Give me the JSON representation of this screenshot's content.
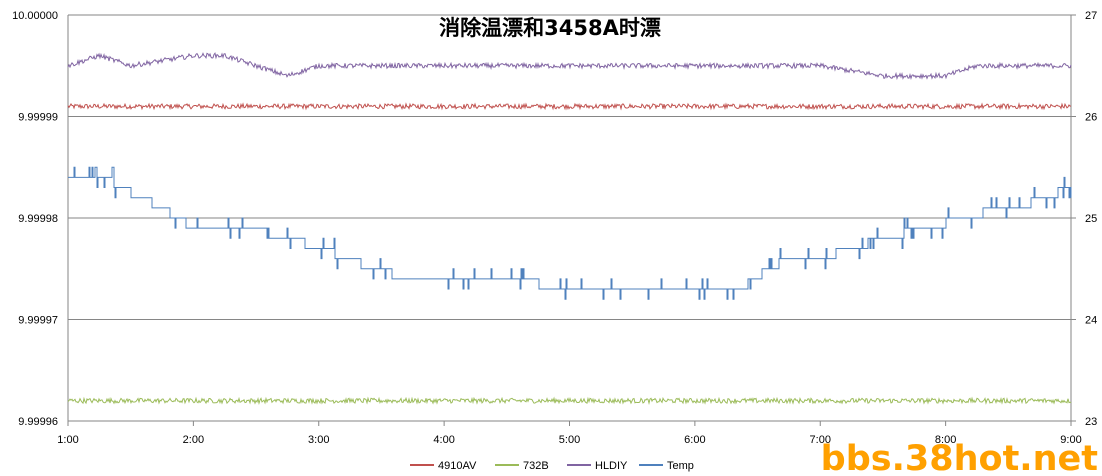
{
  "chart_data": {
    "type": "line",
    "title": "消除温漂和3458A时漂",
    "x": [
      "1:00",
      "2:00",
      "3:00",
      "4:00",
      "5:00",
      "6:00",
      "7:00",
      "8:00",
      "9:00"
    ],
    "xlim": [
      "1:00",
      "9:00"
    ],
    "y_left": {
      "ticks": [
        "10.00000",
        "9.99999",
        "9.99998",
        "9.99997",
        "9.99996"
      ],
      "ylim": [
        9.99996,
        10.0
      ]
    },
    "y_right": {
      "ticks": [
        "27",
        "26",
        "25",
        "24",
        "23"
      ],
      "ylim": [
        23,
        27
      ]
    },
    "grid": true,
    "legend_position": "bottom",
    "series": [
      {
        "name": "4910AV",
        "axis": "left",
        "color": "#c0504d",
        "x": [
          "1:00",
          "1:30",
          "2:00",
          "2:30",
          "3:00",
          "3:30",
          "4:00",
          "4:30",
          "5:00",
          "5:30",
          "6:00",
          "6:30",
          "7:00",
          "7:30",
          "8:00",
          "8:30",
          "9:00"
        ],
        "values": [
          9.999991,
          9.999991,
          9.999991,
          9.999991,
          9.999991,
          9.999991,
          9.999991,
          9.999991,
          9.999991,
          9.999991,
          9.999991,
          9.999991,
          9.999991,
          9.999991,
          9.999991,
          9.999991,
          9.999991
        ]
      },
      {
        "name": "732B",
        "axis": "left",
        "color": "#9bbb59",
        "x": [
          "1:00",
          "1:30",
          "2:00",
          "2:30",
          "3:00",
          "3:30",
          "4:00",
          "4:30",
          "5:00",
          "5:30",
          "6:00",
          "6:30",
          "7:00",
          "7:30",
          "8:00",
          "8:30",
          "9:00"
        ],
        "values": [
          9.999962,
          9.999962,
          9.999962,
          9.999962,
          9.999962,
          9.999962,
          9.999962,
          9.999962,
          9.999962,
          9.999962,
          9.999962,
          9.999962,
          9.999962,
          9.999962,
          9.999962,
          9.999962,
          9.999962
        ]
      },
      {
        "name": "HLDIY",
        "axis": "left",
        "color": "#8064a2",
        "x": [
          "1:00",
          "1:15",
          "1:30",
          "2:00",
          "2:15",
          "2:30",
          "2:45",
          "3:00",
          "3:30",
          "4:00",
          "4:30",
          "5:00",
          "5:30",
          "6:00",
          "6:30",
          "7:00",
          "7:30",
          "7:45",
          "8:00",
          "8:15",
          "8:30",
          "9:00"
        ],
        "values": [
          9.999995,
          9.999996,
          9.999995,
          9.999996,
          9.999996,
          9.999995,
          9.999994,
          9.999995,
          9.999995,
          9.999995,
          9.999995,
          9.999995,
          9.999995,
          9.999995,
          9.999995,
          9.999995,
          9.999994,
          9.999994,
          9.999994,
          9.999995,
          9.999995,
          9.999995
        ]
      },
      {
        "name": "Temp",
        "axis": "right",
        "color": "#4f81bd",
        "x": [
          "1:00",
          "1:15",
          "1:25",
          "1:35",
          "1:45",
          "2:00",
          "2:25",
          "2:45",
          "3:00",
          "3:15",
          "3:25",
          "3:45",
          "4:00",
          "4:15",
          "4:30",
          "4:45",
          "5:00",
          "5:15",
          "5:30",
          "5:45",
          "6:00",
          "6:10",
          "6:25",
          "6:35",
          "6:45",
          "7:00",
          "7:15",
          "7:30",
          "7:40",
          "7:55",
          "8:05",
          "8:30",
          "8:40",
          "9:00"
        ],
        "values": [
          25.4,
          25.45,
          25.3,
          25.2,
          25.1,
          24.9,
          24.9,
          24.8,
          24.7,
          24.6,
          24.5,
          24.4,
          24.4,
          24.45,
          24.4,
          24.35,
          24.3,
          24.25,
          24.3,
          24.3,
          24.35,
          24.3,
          24.35,
          24.5,
          24.6,
          24.6,
          24.7,
          24.8,
          24.85,
          24.9,
          25.0,
          25.1,
          25.15,
          25.3
        ]
      }
    ]
  },
  "watermark": "bbs.38hot.net"
}
